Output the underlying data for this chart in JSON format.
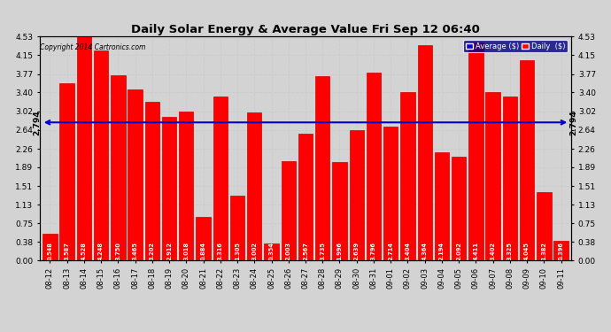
{
  "title": "Daily Solar Energy & Average Value Fri Sep 12 06:40",
  "copyright": "Copyright 2014 Cartronics.com",
  "average_value": 2.794,
  "categories": [
    "08-12",
    "08-13",
    "08-14",
    "08-15",
    "08-16",
    "08-17",
    "08-18",
    "08-19",
    "08-20",
    "08-21",
    "08-22",
    "08-23",
    "08-24",
    "08-25",
    "08-26",
    "08-27",
    "08-28",
    "08-29",
    "08-30",
    "08-31",
    "09-01",
    "09-02",
    "09-03",
    "09-04",
    "09-05",
    "09-06",
    "09-07",
    "09-08",
    "09-09",
    "09-10",
    "09-11"
  ],
  "values": [
    0.548,
    3.587,
    4.528,
    4.248,
    3.75,
    3.465,
    3.202,
    2.912,
    3.018,
    0.884,
    3.316,
    1.305,
    3.002,
    0.354,
    2.003,
    2.567,
    3.735,
    1.996,
    2.639,
    3.796,
    2.714,
    3.404,
    4.364,
    2.194,
    2.092,
    4.411,
    3.402,
    3.325,
    4.045,
    1.382,
    0.396
  ],
  "bar_color": "#ff0000",
  "bar_edge_color": "#cc0000",
  "avg_line_color": "#0000cc",
  "yticks": [
    0.0,
    0.38,
    0.75,
    1.13,
    1.51,
    1.89,
    2.26,
    2.64,
    3.02,
    3.4,
    3.77,
    4.15,
    4.53
  ],
  "ylim": [
    0,
    4.53
  ],
  "grid_color": "#cccccc",
  "background_color": "#d3d3d3",
  "plot_bg_color": "#d3d3d3",
  "legend_avg_color": "#0000cc",
  "legend_daily_color": "#ff0000",
  "legend_avg_label": "Average ($)",
  "legend_daily_label": "Daily  ($)"
}
